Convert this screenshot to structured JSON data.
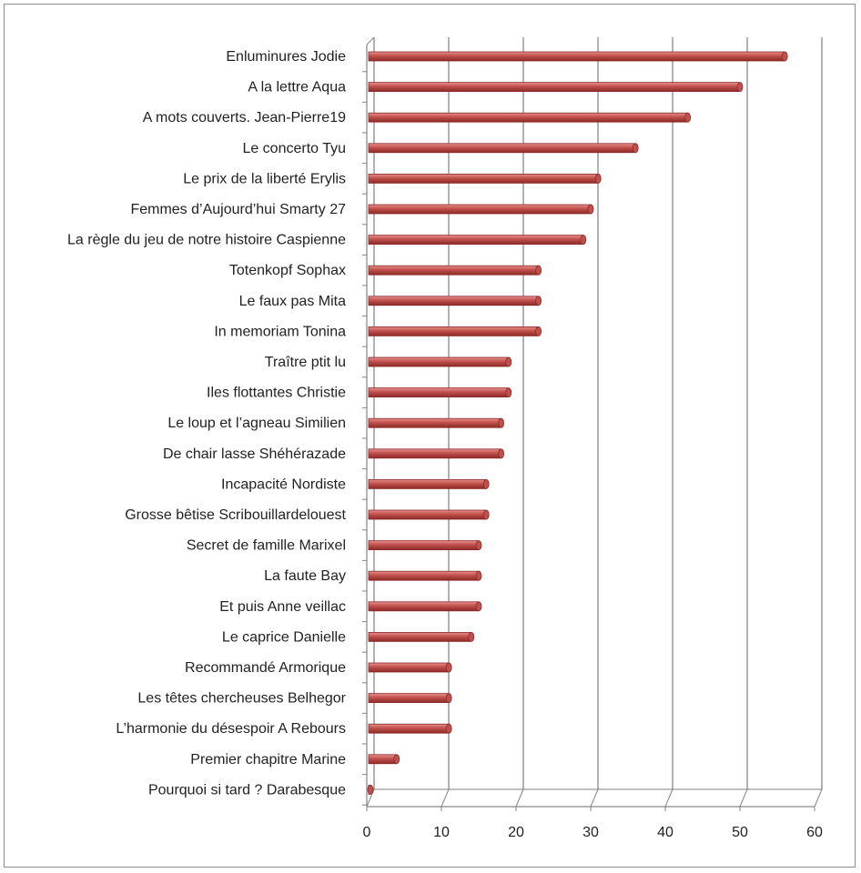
{
  "chart_data": {
    "type": "bar",
    "orientation": "horizontal",
    "title": "",
    "xlabel": "",
    "ylabel": "",
    "categories": [
      "Enluminures Jodie",
      "A la lettre  Aqua",
      "A mots couverts. Jean-Pierre19",
      "Le concerto Tyu",
      "Le prix de la liberté Erylis",
      "Femmes d’Aujourd’hui Smarty 27",
      "La règle du jeu de notre histoire Caspienne",
      "Totenkopf Sophax",
      "Le faux pas Mita",
      "In memoriam Tonina",
      "Traître  ptit lu",
      "Iles flottantes Christie",
      "Le loup et l’agneau Similien",
      "De chair lasse Shéhérazade",
      "Incapacité Nordiste",
      "Grosse bêtise Scribouillardelouest",
      "Secret de famille Marixel",
      "La faute  Bay",
      "Et puis Anne veillac",
      "Le caprice  Danielle",
      "Recommandé Armorique",
      "Les têtes chercheuses  Belhegor",
      "L’harmonie du désespoir  A Rebours",
      "Premier chapitre Marine",
      "Pourquoi si tard ? Darabesque"
    ],
    "values": [
      56,
      50,
      43,
      36,
      31,
      30,
      29,
      23,
      23,
      23,
      19,
      19,
      18,
      18,
      16,
      16,
      15,
      15,
      15,
      14,
      11,
      11,
      11,
      4,
      0
    ],
    "xlim": [
      0,
      60
    ],
    "xticks": [
      "0",
      "10",
      "20",
      "30",
      "40",
      "50",
      "60"
    ],
    "grid": true,
    "legend": "none",
    "colors": {
      "bar": "#c0504d",
      "bar_light": "#e8908e",
      "bar_dark": "#8b2a28",
      "grid": "#7f7f7f",
      "axis": "#868686"
    }
  }
}
